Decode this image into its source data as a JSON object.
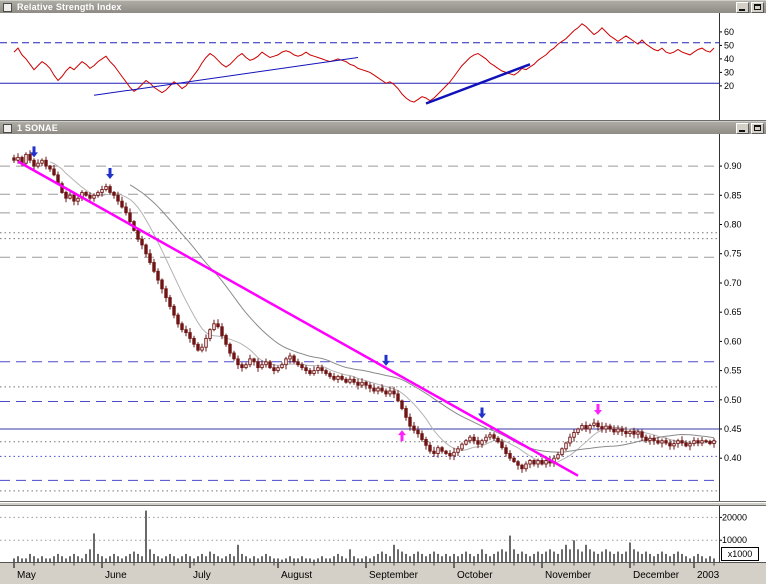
{
  "window_chrome": {
    "rsi_title": "Relative Strength Index",
    "price_title": "1 SONAE"
  },
  "x_axis": {
    "labels": [
      "May",
      "June",
      "July",
      "August",
      "September",
      "October",
      "November",
      "December",
      "2003"
    ],
    "bar_positions": [
      0,
      22,
      44,
      66,
      88,
      110,
      132,
      154,
      170
    ]
  },
  "chart_data": [
    {
      "id": "rsi",
      "type": "line",
      "title": "Relative Strength Index",
      "y_ticks": [
        60,
        50,
        40,
        30,
        20
      ],
      "y_range": [
        -6,
        74
      ],
      "line_color": "#cc0000",
      "reference_lines": [
        {
          "value": 52,
          "style": "dashed",
          "color": "#2222bb"
        },
        {
          "value": 22,
          "style": "solid",
          "color": "#2222bb"
        }
      ],
      "trendlines": [
        {
          "from_bar": 20,
          "from_value": 13,
          "to_bar": 86,
          "to_value": 41,
          "width": 1
        },
        {
          "from_bar": 103,
          "from_value": 7,
          "to_bar": 129,
          "to_value": 36,
          "width": 2.5
        }
      ],
      "values": [
        45,
        48,
        43,
        40,
        36,
        32,
        35,
        38,
        36,
        33,
        28,
        24,
        27,
        31,
        34,
        32,
        35,
        38,
        36,
        33,
        35,
        38,
        40,
        42,
        38,
        35,
        31,
        27,
        23,
        19,
        16,
        18,
        21,
        24,
        22,
        19,
        17,
        15,
        17,
        20,
        23,
        21,
        18,
        20,
        24,
        28,
        32,
        37,
        41,
        44,
        42,
        39,
        36,
        34,
        36,
        39,
        42,
        44,
        41,
        39,
        40,
        42,
        45,
        43,
        41,
        42,
        43,
        45,
        46,
        45,
        43,
        42,
        43,
        45,
        43,
        42,
        41,
        40,
        39,
        38,
        39,
        40,
        39,
        38,
        36,
        35,
        33,
        32,
        31,
        30,
        28,
        26,
        24,
        22,
        23,
        21,
        18,
        14,
        11,
        9,
        8,
        10,
        12,
        11,
        9,
        11,
        14,
        17,
        20,
        23,
        27,
        31,
        35,
        38,
        41,
        43,
        44,
        42,
        40,
        37,
        35,
        33,
        31,
        30,
        29,
        28,
        30,
        33,
        32,
        34,
        36,
        39,
        41,
        43,
        46,
        48,
        51,
        53,
        55,
        58,
        61,
        63,
        66,
        64,
        61,
        58,
        60,
        63,
        60,
        57,
        55,
        53,
        55,
        57,
        55,
        53,
        51,
        54,
        51,
        49,
        47,
        46,
        48,
        45,
        44,
        45,
        47,
        45,
        44,
        43,
        45,
        47,
        48,
        46,
        45,
        48
      ]
    },
    {
      "id": "price",
      "type": "candlestick",
      "title": "1 SONAE",
      "y_ticks": [
        "0.90",
        "0.85",
        "0.80",
        "0.75",
        "0.70",
        "0.65",
        "0.60",
        "0.55",
        "0.50",
        "0.45",
        "0.40"
      ],
      "y_range": [
        0.325,
        0.955
      ],
      "candle_color": "#6e1414",
      "ma_periods": [
        10,
        30
      ],
      "ma_colors": [
        "#b4b4b4",
        "#8a8a8a"
      ],
      "trendline": {
        "from_bar": 1,
        "from_value": 0.908,
        "to_bar": 141,
        "to_value": 0.37,
        "color": "#ff00ff",
        "width": 2.5
      },
      "arrows": [
        {
          "bar": 5,
          "value": 0.915,
          "dir": "down",
          "color": "#2233cc"
        },
        {
          "bar": 24,
          "value": 0.878,
          "dir": "down",
          "color": "#2233cc"
        },
        {
          "bar": 93,
          "value": 0.558,
          "dir": "down",
          "color": "#2233cc"
        },
        {
          "bar": 97,
          "value": 0.448,
          "dir": "up",
          "color": "#ff22ff"
        },
        {
          "bar": 117,
          "value": 0.468,
          "dir": "down",
          "color": "#2233cc"
        },
        {
          "bar": 146,
          "value": 0.474,
          "dir": "down",
          "color": "#ff22ff"
        }
      ],
      "horizontal_lines": [
        {
          "value": 0.9,
          "style": "gray-dash"
        },
        {
          "value": 0.852,
          "style": "gray-dash"
        },
        {
          "value": 0.82,
          "style": "gray-dash"
        },
        {
          "value": 0.786,
          "style": "gray-dot"
        },
        {
          "value": 0.776,
          "style": "gray-dot"
        },
        {
          "value": 0.744,
          "style": "gray-dash"
        },
        {
          "value": 0.565,
          "style": "blue-dash"
        },
        {
          "value": 0.522,
          "style": "gray-dot"
        },
        {
          "value": 0.497,
          "style": "blue-dash"
        },
        {
          "value": 0.45,
          "style": "blue-solid"
        },
        {
          "value": 0.428,
          "style": "gray-dot"
        },
        {
          "value": 0.403,
          "style": "blue-dot"
        },
        {
          "value": 0.362,
          "style": "blue-dash"
        },
        {
          "value": 0.344,
          "style": "gray-dot"
        }
      ],
      "closes": [
        0.91,
        0.915,
        0.905,
        0.92,
        0.91,
        0.9,
        0.905,
        0.91,
        0.9,
        0.895,
        0.885,
        0.87,
        0.855,
        0.845,
        0.85,
        0.84,
        0.845,
        0.855,
        0.85,
        0.845,
        0.85,
        0.855,
        0.86,
        0.865,
        0.855,
        0.85,
        0.84,
        0.83,
        0.82,
        0.805,
        0.79,
        0.775,
        0.765,
        0.75,
        0.735,
        0.72,
        0.705,
        0.69,
        0.675,
        0.66,
        0.645,
        0.63,
        0.62,
        0.615,
        0.605,
        0.595,
        0.585,
        0.59,
        0.605,
        0.62,
        0.63,
        0.625,
        0.61,
        0.595,
        0.58,
        0.57,
        0.56,
        0.555,
        0.56,
        0.57,
        0.565,
        0.555,
        0.56,
        0.565,
        0.555,
        0.55,
        0.555,
        0.56,
        0.57,
        0.575,
        0.565,
        0.56,
        0.555,
        0.55,
        0.545,
        0.55,
        0.555,
        0.55,
        0.545,
        0.54,
        0.535,
        0.54,
        0.535,
        0.53,
        0.535,
        0.53,
        0.525,
        0.53,
        0.525,
        0.52,
        0.515,
        0.52,
        0.515,
        0.51,
        0.515,
        0.51,
        0.498,
        0.485,
        0.47,
        0.455,
        0.448,
        0.442,
        0.432,
        0.422,
        0.412,
        0.408,
        0.418,
        0.412,
        0.408,
        0.404,
        0.41,
        0.416,
        0.424,
        0.43,
        0.436,
        0.43,
        0.424,
        0.43,
        0.436,
        0.44,
        0.434,
        0.428,
        0.418,
        0.408,
        0.4,
        0.394,
        0.388,
        0.382,
        0.39,
        0.396,
        0.39,
        0.396,
        0.39,
        0.396,
        0.392,
        0.4,
        0.406,
        0.416,
        0.426,
        0.436,
        0.444,
        0.45,
        0.456,
        0.45,
        0.456,
        0.46,
        0.454,
        0.45,
        0.455,
        0.45,
        0.445,
        0.45,
        0.446,
        0.442,
        0.446,
        0.441,
        0.445,
        0.436,
        0.43,
        0.434,
        0.43,
        0.426,
        0.43,
        0.426,
        0.421,
        0.425,
        0.43,
        0.426,
        0.421,
        0.425,
        0.43,
        0.426,
        0.43,
        0.429,
        0.425,
        0.43
      ]
    },
    {
      "id": "volume",
      "type": "bar",
      "y_ticks": [
        "20000",
        "10000"
      ],
      "y_tick_values": [
        20000,
        10000
      ],
      "y_max": 25000,
      "unit_label": "x1000",
      "bar_color": "#6a6a6a",
      "values": [
        2000,
        3000,
        2000,
        2000,
        4000,
        3000,
        2000,
        3000,
        2000,
        2000,
        3000,
        4000,
        3000,
        2000,
        3000,
        4000,
        3000,
        2000,
        4000,
        6000,
        13000,
        4000,
        3000,
        2000,
        3000,
        4000,
        3000,
        2000,
        3000,
        4000,
        5000,
        4000,
        3000,
        23000,
        6000,
        4000,
        3000,
        2000,
        3000,
        4000,
        3000,
        2000,
        3000,
        4000,
        3000,
        2000,
        3000,
        4000,
        3000,
        5000,
        4000,
        3000,
        2000,
        3000,
        4000,
        3000,
        8000,
        4000,
        3000,
        2000,
        3000,
        2000,
        3000,
        4000,
        3000,
        2000,
        2000,
        1500,
        2000,
        3000,
        2000,
        2000,
        3000,
        2000,
        2000,
        1500,
        2000,
        3000,
        2000,
        2000,
        3000,
        4000,
        3000,
        2000,
        6000,
        3000,
        2000,
        2000,
        3000,
        2000,
        3000,
        4000,
        5000,
        4000,
        3000,
        8000,
        6000,
        5000,
        4000,
        3000,
        4000,
        5000,
        4000,
        3000,
        4000,
        5000,
        4000,
        3000,
        4000,
        3000,
        4000,
        3000,
        4000,
        5000,
        4000,
        3000,
        4000,
        6000,
        4000,
        3000,
        4000,
        5000,
        6000,
        5000,
        12000,
        6000,
        4000,
        5000,
        4000,
        3000,
        4000,
        5000,
        4000,
        5000,
        6000,
        5000,
        4000,
        6000,
        8000,
        6000,
        10000,
        6000,
        5000,
        8000,
        6000,
        5000,
        4000,
        5000,
        6000,
        5000,
        4000,
        5000,
        4000,
        5000,
        9000,
        6000,
        5000,
        4000,
        5000,
        4000,
        3000,
        4000,
        5000,
        4000,
        3000,
        4000,
        5000,
        4000,
        3000,
        2000,
        3000,
        4000,
        3000,
        2000,
        3000,
        2000
      ]
    }
  ]
}
